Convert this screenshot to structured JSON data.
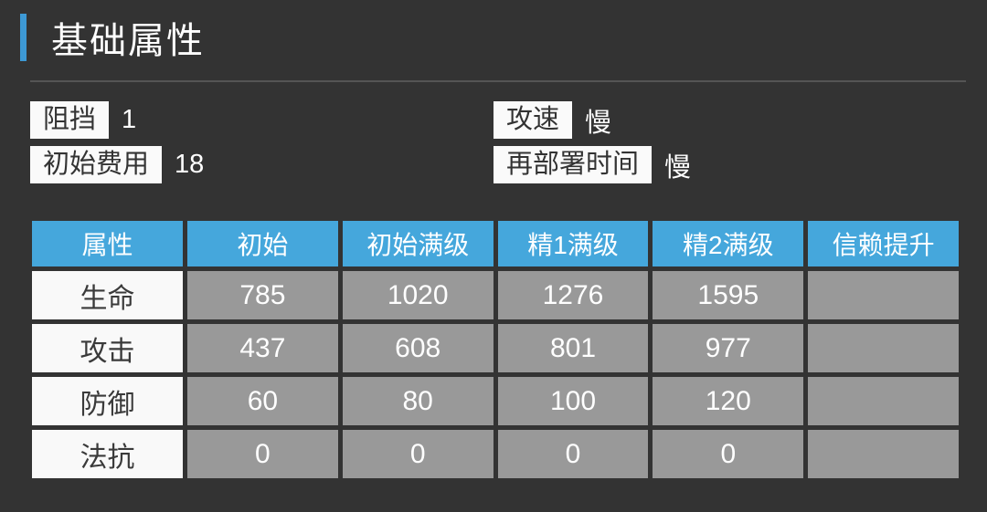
{
  "section": {
    "title": "基础属性"
  },
  "colors": {
    "panel_bg": "#333333",
    "accent_blue": "#3d99d5",
    "header_blue": "#45a7dc",
    "cell_gray": "#999999",
    "label_white": "#f9f9f9",
    "divider_gray": "#555555"
  },
  "info": {
    "items": [
      {
        "label": "阻挡",
        "value": "1"
      },
      {
        "label": "攻速",
        "value": "慢"
      },
      {
        "label": "初始费用",
        "value": "18"
      },
      {
        "label": "再部署时间",
        "value": "慢"
      }
    ]
  },
  "table": {
    "headers": [
      "属性",
      "初始",
      "初始满级",
      "精1满级",
      "精2满级",
      "信赖提升"
    ],
    "rows": [
      {
        "label": "生命",
        "values": [
          "785",
          "1020",
          "1276",
          "1595",
          ""
        ]
      },
      {
        "label": "攻击",
        "values": [
          "437",
          "608",
          "801",
          "977",
          ""
        ]
      },
      {
        "label": "防御",
        "values": [
          "60",
          "80",
          "100",
          "120",
          ""
        ]
      },
      {
        "label": "法抗",
        "values": [
          "0",
          "0",
          "0",
          "0",
          ""
        ]
      }
    ]
  }
}
